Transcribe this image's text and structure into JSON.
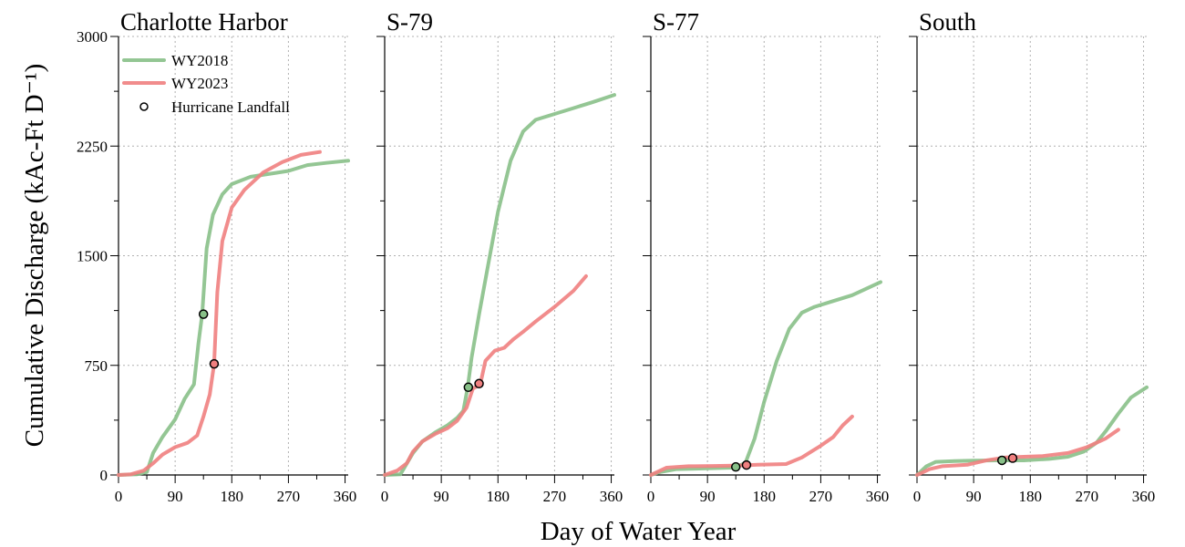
{
  "chart_data": {
    "type": "line",
    "ylabel": "Cumulative Discharge (kAc-Ft D⁻¹)",
    "xlabel": "Day of Water Year",
    "xlim": [
      0,
      365
    ],
    "ylim": [
      0,
      3000
    ],
    "xticks": [
      0,
      90,
      180,
      270,
      360
    ],
    "yticks": [
      0,
      750,
      1500,
      2250,
      3000
    ],
    "grid": true,
    "legend": {
      "position": "top-left",
      "entries": [
        {
          "label": "WY2018",
          "kind": "line",
          "color": "#88c088"
        },
        {
          "label": "WY2023",
          "kind": "line",
          "color": "#f08080"
        },
        {
          "label": "Hurricane Landfall",
          "kind": "marker"
        }
      ]
    },
    "colors": {
      "wy2018": "#88c088",
      "wy2023": "#f08080"
    },
    "panels": [
      {
        "title": "Charlotte Harbor",
        "series": [
          {
            "name": "WY2018",
            "points": [
              [
                0,
                0
              ],
              [
                30,
                5
              ],
              [
                45,
                20
              ],
              [
                55,
                150
              ],
              [
                70,
                260
              ],
              [
                90,
                380
              ],
              [
                105,
                520
              ],
              [
                120,
                620
              ],
              [
                127,
                900
              ],
              [
                133,
                1100
              ],
              [
                140,
                1550
              ],
              [
                150,
                1780
              ],
              [
                165,
                1920
              ],
              [
                180,
                1990
              ],
              [
                210,
                2040
              ],
              [
                270,
                2080
              ],
              [
                300,
                2120
              ],
              [
                330,
                2135
              ],
              [
                365,
                2150
              ]
            ]
          },
          {
            "name": "WY2023",
            "points": [
              [
                0,
                0
              ],
              [
                20,
                5
              ],
              [
                40,
                30
              ],
              [
                55,
                80
              ],
              [
                70,
                140
              ],
              [
                90,
                190
              ],
              [
                110,
                220
              ],
              [
                125,
                270
              ],
              [
                135,
                400
              ],
              [
                145,
                550
              ],
              [
                152,
                760
              ],
              [
                157,
                1250
              ],
              [
                165,
                1600
              ],
              [
                180,
                1830
              ],
              [
                200,
                1950
              ],
              [
                230,
                2070
              ],
              [
                260,
                2140
              ],
              [
                290,
                2190
              ],
              [
                320,
                2210
              ]
            ]
          }
        ],
        "landfall": [
          {
            "series": "WY2018",
            "x": 135,
            "y": 1100
          },
          {
            "series": "WY2023",
            "x": 152,
            "y": 760
          }
        ]
      },
      {
        "title": "S-79",
        "series": [
          {
            "name": "WY2018",
            "points": [
              [
                0,
                0
              ],
              [
                25,
                5
              ],
              [
                45,
                150
              ],
              [
                60,
                230
              ],
              [
                80,
                290
              ],
              [
                100,
                340
              ],
              [
                115,
                390
              ],
              [
                125,
                440
              ],
              [
                132,
                600
              ],
              [
                138,
                800
              ],
              [
                150,
                1100
              ],
              [
                165,
                1450
              ],
              [
                180,
                1800
              ],
              [
                200,
                2150
              ],
              [
                220,
                2350
              ],
              [
                240,
                2430
              ],
              [
                270,
                2470
              ],
              [
                300,
                2510
              ],
              [
                330,
                2550
              ],
              [
                365,
                2600
              ]
            ]
          },
          {
            "name": "WY2023",
            "points": [
              [
                0,
                0
              ],
              [
                20,
                30
              ],
              [
                35,
                80
              ],
              [
                45,
                160
              ],
              [
                60,
                230
              ],
              [
                80,
                280
              ],
              [
                100,
                320
              ],
              [
                115,
                370
              ],
              [
                130,
                460
              ],
              [
                140,
                590
              ],
              [
                152,
                620
              ],
              [
                160,
                780
              ],
              [
                175,
                850
              ],
              [
                190,
                870
              ],
              [
                205,
                930
              ],
              [
                220,
                980
              ],
              [
                240,
                1050
              ],
              [
                270,
                1150
              ],
              [
                300,
                1260
              ],
              [
                320,
                1360
              ]
            ]
          }
        ],
        "landfall": [
          {
            "series": "WY2018",
            "x": 133,
            "y": 600
          },
          {
            "series": "WY2023",
            "x": 150,
            "y": 625
          }
        ]
      },
      {
        "title": "S-77",
        "series": [
          {
            "name": "WY2018",
            "points": [
              [
                0,
                0
              ],
              [
                15,
                20
              ],
              [
                40,
                40
              ],
              [
                90,
                45
              ],
              [
                130,
                50
              ],
              [
                150,
                80
              ],
              [
                165,
                250
              ],
              [
                180,
                500
              ],
              [
                200,
                780
              ],
              [
                220,
                1000
              ],
              [
                240,
                1110
              ],
              [
                260,
                1150
              ],
              [
                290,
                1190
              ],
              [
                320,
                1230
              ],
              [
                365,
                1320
              ]
            ]
          },
          {
            "name": "WY2023",
            "points": [
              [
                0,
                0
              ],
              [
                25,
                50
              ],
              [
                60,
                60
              ],
              [
                100,
                62
              ],
              [
                140,
                65
              ],
              [
                170,
                70
              ],
              [
                215,
                75
              ],
              [
                240,
                120
              ],
              [
                270,
                200
              ],
              [
                290,
                260
              ],
              [
                305,
                340
              ],
              [
                320,
                400
              ]
            ]
          }
        ],
        "landfall": [
          {
            "series": "WY2018",
            "x": 135,
            "y": 55
          },
          {
            "series": "WY2023",
            "x": 152,
            "y": 68
          }
        ]
      },
      {
        "title": "South",
        "series": [
          {
            "name": "WY2018",
            "points": [
              [
                0,
                0
              ],
              [
                15,
                60
              ],
              [
                30,
                90
              ],
              [
                60,
                95
              ],
              [
                90,
                98
              ],
              [
                130,
                100
              ],
              [
                170,
                100
              ],
              [
                210,
                110
              ],
              [
                240,
                125
              ],
              [
                265,
                160
              ],
              [
                285,
                220
              ],
              [
                300,
                300
              ],
              [
                320,
                420
              ],
              [
                340,
                530
              ],
              [
                365,
                600
              ]
            ]
          },
          {
            "name": "WY2023",
            "points": [
              [
                0,
                0
              ],
              [
                20,
                40
              ],
              [
                40,
                60
              ],
              [
                80,
                70
              ],
              [
                110,
                100
              ],
              [
                140,
                120
              ],
              [
                170,
                125
              ],
              [
                200,
                130
              ],
              [
                240,
                150
              ],
              [
                270,
                190
              ],
              [
                300,
                250
              ],
              [
                320,
                310
              ]
            ]
          }
        ],
        "landfall": [
          {
            "series": "WY2018",
            "x": 135,
            "y": 100
          },
          {
            "series": "WY2023",
            "x": 152,
            "y": 115
          }
        ]
      }
    ]
  }
}
